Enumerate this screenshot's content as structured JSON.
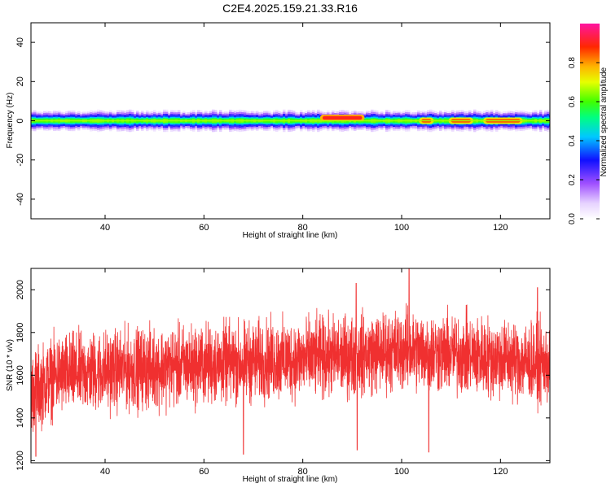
{
  "title": "C2E4.2025.159.21.33.R16",
  "chart_data": [
    {
      "type": "heatmap",
      "xlabel": "Height of straight line (km)",
      "ylabel": "Frequency (Hz)",
      "xlim": [
        25,
        130
      ],
      "ylim": [
        -50,
        50
      ],
      "xticks": [
        40,
        60,
        80,
        100,
        120
      ],
      "yticks": [
        -40,
        -20,
        0,
        20,
        40
      ],
      "grid": false,
      "colorbar": {
        "label": "Normalized spectral amplitude",
        "range": [
          0,
          1
        ],
        "ticks": [
          0.0,
          0.2,
          0.4,
          0.6,
          0.8
        ],
        "tick_labels": [
          "0.0",
          "0.2",
          "0.4",
          "0.6",
          "0.8"
        ],
        "colormap": "rainbow (white-violet-blue-cyan-green-yellow-red-magenta)"
      },
      "band": {
        "center_frequency_hz": 0,
        "half_width_hz": 5,
        "hot_spots": [
          {
            "x": [
              84,
              92
            ],
            "y": 1.5,
            "amplitude": 0.9
          },
          {
            "x": [
              104,
              106
            ],
            "y": 0,
            "amplitude": 0.85
          },
          {
            "x": [
              110,
              114
            ],
            "y": 0,
            "amplitude": 0.85
          },
          {
            "x": [
              117,
              124
            ],
            "y": 0,
            "amplitude": 0.85
          }
        ]
      }
    },
    {
      "type": "line",
      "xlabel": "Height of straight line (km)",
      "ylabel": "SNR (10 * v/v)",
      "xlim": [
        25,
        130
      ],
      "ylim": [
        1190,
        2100
      ],
      "xticks": [
        40,
        60,
        80,
        100,
        120
      ],
      "yticks": [
        1200,
        1400,
        1600,
        1800,
        2000
      ],
      "grid": false,
      "color": "#f03030",
      "trend": {
        "x": [
          25,
          30,
          40,
          60,
          75,
          90,
          100,
          110,
          120,
          130
        ],
        "mean": [
          1520,
          1600,
          1620,
          1650,
          1670,
          1690,
          1720,
          1700,
          1680,
          1650
        ],
        "spread": 200
      },
      "peaks": [
        {
          "x": 101.5,
          "y": 2100
        },
        {
          "x": 90.8,
          "y": 2030
        },
        {
          "x": 127.5,
          "y": 2010
        },
        {
          "x": 68,
          "y": 1230
        },
        {
          "x": 91,
          "y": 1250
        },
        {
          "x": 105.5,
          "y": 1240
        },
        {
          "x": 26,
          "y": 1220
        }
      ]
    }
  ]
}
